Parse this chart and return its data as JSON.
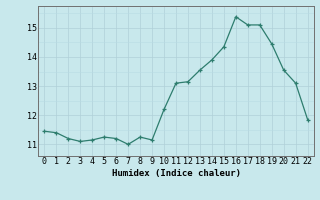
{
  "xlabel": "Humidex (Indice chaleur)",
  "x": [
    0,
    1,
    2,
    3,
    4,
    5,
    6,
    7,
    8,
    9,
    10,
    11,
    12,
    13,
    14,
    15,
    16,
    17,
    18,
    19,
    20,
    21,
    22
  ],
  "y": [
    11.45,
    11.4,
    11.2,
    11.1,
    11.15,
    11.25,
    11.2,
    11.0,
    11.25,
    11.15,
    12.2,
    13.1,
    13.15,
    13.55,
    13.9,
    14.35,
    15.38,
    15.1,
    15.1,
    14.45,
    13.55,
    13.1,
    11.85
  ],
  "line_color": "#2e7d6e",
  "marker": "+",
  "bg_color": "#c8e8ec",
  "grid_major_color": "#b0d0d8",
  "grid_minor_color": "#b8dce4",
  "axis_color": "#707070",
  "ylim": [
    10.6,
    15.75
  ],
  "xlim": [
    -0.5,
    22.5
  ],
  "yticks": [
    11,
    12,
    13,
    14,
    15
  ],
  "label_fontsize": 6.5,
  "tick_fontsize": 6.0
}
